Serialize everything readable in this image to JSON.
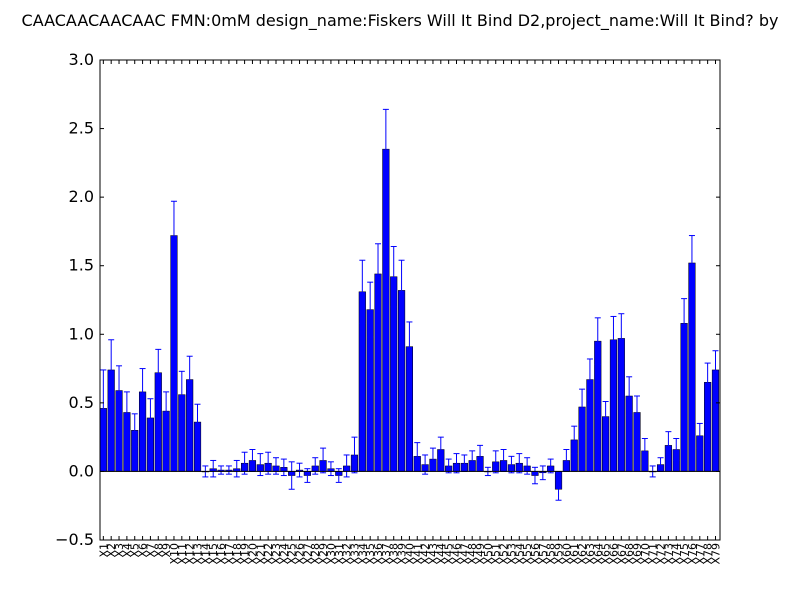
{
  "chart_data": {
    "type": "bar",
    "title": "CAACAACAACAAC  FMN:0mM  design_name:Fiskers Will It Bind D2,project_name:Will It Bind? by",
    "xlabel": "",
    "ylabel": "",
    "ylim": [
      -0.5,
      3.0
    ],
    "yticks": [
      "−0.5",
      "0.0",
      "0.5",
      "1.0",
      "1.5",
      "2.0",
      "2.5",
      "3.0"
    ],
    "ytick_values": [
      -0.5,
      0.0,
      0.5,
      1.0,
      1.5,
      2.0,
      2.5,
      3.0
    ],
    "bar_color": "#0000ff",
    "error_color": "#0000ff",
    "grid": false,
    "categories": [
      "X1",
      "X2",
      "X3",
      "X4",
      "X5",
      "X6",
      "X7",
      "X8",
      "X9",
      "X10",
      "X11",
      "X12",
      "X13",
      "X14",
      "X15",
      "X16",
      "X17",
      "X18",
      "X19",
      "X20",
      "X21",
      "X22",
      "X23",
      "X24",
      "X25",
      "X26",
      "X27",
      "X28",
      "X29",
      "X30",
      "X31",
      "X32",
      "X33",
      "X34",
      "X35",
      "X36",
      "X37",
      "X38",
      "X39",
      "X40",
      "X41",
      "X42",
      "X43",
      "X44",
      "X45",
      "X46",
      "X47",
      "X48",
      "X49",
      "X50",
      "X51",
      "X52",
      "X53",
      "X54",
      "X55",
      "X56",
      "X57",
      "X58",
      "X59",
      "X60",
      "X61",
      "X62",
      "X63",
      "X64",
      "X65",
      "X66",
      "X67",
      "X68",
      "X69",
      "X70",
      "X71",
      "X72",
      "X73",
      "X74",
      "X75",
      "X76",
      "X77",
      "X78",
      "X79"
    ],
    "values": [
      0.46,
      0.74,
      0.59,
      0.43,
      0.3,
      0.58,
      0.39,
      0.72,
      0.44,
      1.72,
      0.56,
      0.67,
      0.36,
      0.0,
      0.02,
      0.01,
      0.01,
      0.02,
      0.06,
      0.08,
      0.05,
      0.06,
      0.04,
      0.03,
      -0.03,
      0.01,
      -0.03,
      0.04,
      0.08,
      0.02,
      -0.03,
      0.04,
      0.12,
      1.31,
      1.18,
      1.44,
      2.35,
      1.42,
      1.32,
      0.91,
      0.11,
      0.05,
      0.09,
      0.16,
      0.04,
      0.06,
      0.06,
      0.08,
      0.11,
      0.0,
      0.07,
      0.08,
      0.05,
      0.06,
      0.04,
      -0.03,
      -0.01,
      0.04,
      -0.13,
      0.08,
      0.23,
      0.47,
      0.67,
      0.95,
      0.4,
      0.96,
      0.97,
      0.55,
      0.43,
      0.15,
      0.0,
      0.05,
      0.19,
      0.16,
      1.08,
      1.52,
      0.26,
      0.65,
      0.74
    ],
    "errors": [
      0.28,
      0.22,
      0.18,
      0.15,
      0.12,
      0.17,
      0.14,
      0.17,
      0.14,
      0.25,
      0.17,
      0.17,
      0.13,
      0.04,
      0.06,
      0.03,
      0.03,
      0.06,
      0.08,
      0.08,
      0.08,
      0.08,
      0.06,
      0.06,
      0.1,
      0.05,
      0.05,
      0.06,
      0.09,
      0.05,
      0.05,
      0.08,
      0.13,
      0.23,
      0.2,
      0.22,
      0.29,
      0.22,
      0.22,
      0.18,
      0.1,
      0.07,
      0.08,
      0.09,
      0.05,
      0.07,
      0.06,
      0.07,
      0.08,
      0.03,
      0.08,
      0.08,
      0.06,
      0.07,
      0.06,
      0.06,
      0.05,
      0.05,
      0.08,
      0.08,
      0.1,
      0.13,
      0.15,
      0.17,
      0.11,
      0.17,
      0.18,
      0.14,
      0.12,
      0.09,
      0.04,
      0.05,
      0.1,
      0.08,
      0.18,
      0.2,
      0.09,
      0.14,
      0.14
    ]
  }
}
